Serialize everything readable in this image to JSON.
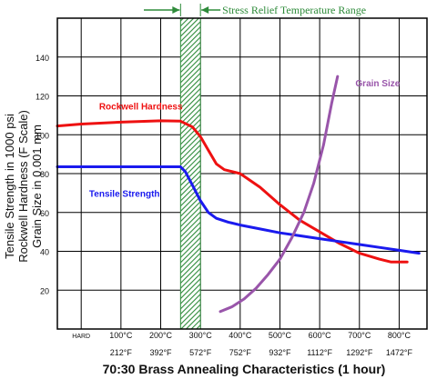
{
  "chart_data": {
    "type": "line",
    "title": "70:30 Brass Annealing Characteristics (1 hour)",
    "ylabel_lines": [
      "Tensile Strength in 1000 psi",
      "Rockwell Hardness (F Scale)",
      "Grain Size in 0.001 mm"
    ],
    "ylim": [
      0,
      160
    ],
    "yticks": [
      20,
      40,
      60,
      80,
      100,
      120,
      140
    ],
    "xlim": [
      -60,
      870
    ],
    "x_celsius_ticks": [
      {
        "x": 0,
        "label": "HARD"
      },
      {
        "x": 100,
        "label": "100°C"
      },
      {
        "x": 200,
        "label": "200°C"
      },
      {
        "x": 300,
        "label": "300°C"
      },
      {
        "x": 400,
        "label": "400°C"
      },
      {
        "x": 500,
        "label": "500°C"
      },
      {
        "x": 600,
        "label": "600°C"
      },
      {
        "x": 700,
        "label": "700°C"
      },
      {
        "x": 800,
        "label": "800°C"
      }
    ],
    "x_fahrenheit_ticks": [
      {
        "x": 100,
        "label": "212°F"
      },
      {
        "x": 200,
        "label": "392°F"
      },
      {
        "x": 300,
        "label": "572°F"
      },
      {
        "x": 400,
        "label": "752°F"
      },
      {
        "x": 500,
        "label": "932°F"
      },
      {
        "x": 600,
        "label": "1112°F"
      },
      {
        "x": 700,
        "label": "1292°F"
      },
      {
        "x": 800,
        "label": "1472°F"
      }
    ],
    "stress_relief_range": {
      "label": "Stress Relief Temperature Range",
      "x_min": 250,
      "x_max": 300
    },
    "series": [
      {
        "name": "Rockwell Hardness",
        "color": "#ee1111",
        "points": [
          [
            -60,
            104.5
          ],
          [
            0,
            105.5
          ],
          [
            100,
            106.5
          ],
          [
            200,
            107.2
          ],
          [
            250,
            107
          ],
          [
            280,
            104
          ],
          [
            300,
            99
          ],
          [
            320,
            92
          ],
          [
            340,
            85
          ],
          [
            360,
            82
          ],
          [
            400,
            80
          ],
          [
            450,
            73
          ],
          [
            500,
            64
          ],
          [
            550,
            56
          ],
          [
            600,
            50
          ],
          [
            650,
            44
          ],
          [
            700,
            39
          ],
          [
            750,
            36
          ],
          [
            780,
            34.5
          ],
          [
            820,
            34.5
          ]
        ]
      },
      {
        "name": "Tensile Strength",
        "color": "#1a1aee",
        "points": [
          [
            -60,
            83.5
          ],
          [
            0,
            83.5
          ],
          [
            100,
            83.5
          ],
          [
            200,
            83.5
          ],
          [
            250,
            83.5
          ],
          [
            262,
            81
          ],
          [
            280,
            74
          ],
          [
            300,
            66
          ],
          [
            320,
            60
          ],
          [
            340,
            57
          ],
          [
            370,
            55
          ],
          [
            400,
            53.5
          ],
          [
            450,
            51.5
          ],
          [
            500,
            49.5
          ],
          [
            550,
            48
          ],
          [
            600,
            46.5
          ],
          [
            650,
            45
          ],
          [
            700,
            43.5
          ],
          [
            750,
            42
          ],
          [
            800,
            40.5
          ],
          [
            850,
            39
          ]
        ]
      },
      {
        "name": "Grain Size",
        "color": "#9955aa",
        "points": [
          [
            350,
            9
          ],
          [
            380,
            11.5
          ],
          [
            410,
            15.5
          ],
          [
            440,
            21
          ],
          [
            470,
            28
          ],
          [
            500,
            36
          ],
          [
            530,
            47
          ],
          [
            560,
            60
          ],
          [
            585,
            75
          ],
          [
            610,
            95
          ],
          [
            630,
            116
          ],
          [
            645,
            130
          ]
        ]
      }
    ],
    "series_labels": [
      {
        "series": "Rockwell Hardness",
        "x": 45,
        "y": 113
      },
      {
        "series": "Tensile Strength",
        "x": 20,
        "y": 68
      },
      {
        "series": "Grain Size",
        "x": 690,
        "y": 125
      }
    ],
    "grid": true
  }
}
